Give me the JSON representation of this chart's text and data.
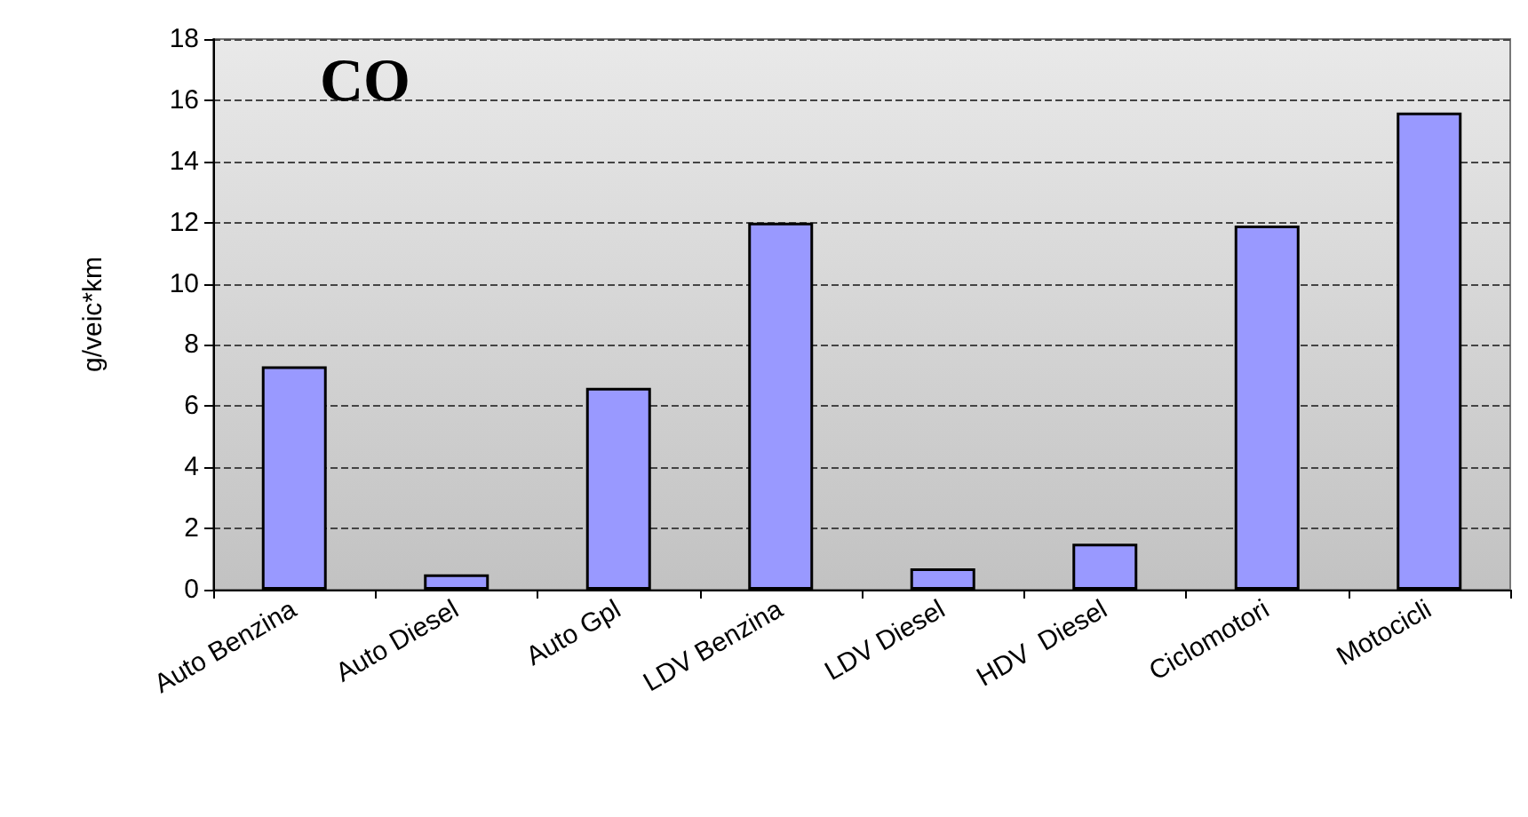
{
  "chart_data": {
    "type": "bar",
    "title": "CO",
    "ylabel": "g/veic*km",
    "categories": [
      "Auto Benzina",
      "Auto Diesel",
      "Auto Gpl",
      "LDV Benzina",
      "LDV Diesel",
      "HDV  Diesel",
      "Ciclomotori",
      "Motocicli"
    ],
    "values": [
      7.3,
      0.5,
      6.6,
      12.0,
      0.7,
      1.5,
      11.9,
      15.6
    ],
    "color": "#9999ff",
    "ylim": [
      0,
      18
    ],
    "yticks": [
      0,
      2,
      4,
      6,
      8,
      10,
      12,
      14,
      16,
      18
    ],
    "grid": "y",
    "line_style": "dashed"
  }
}
